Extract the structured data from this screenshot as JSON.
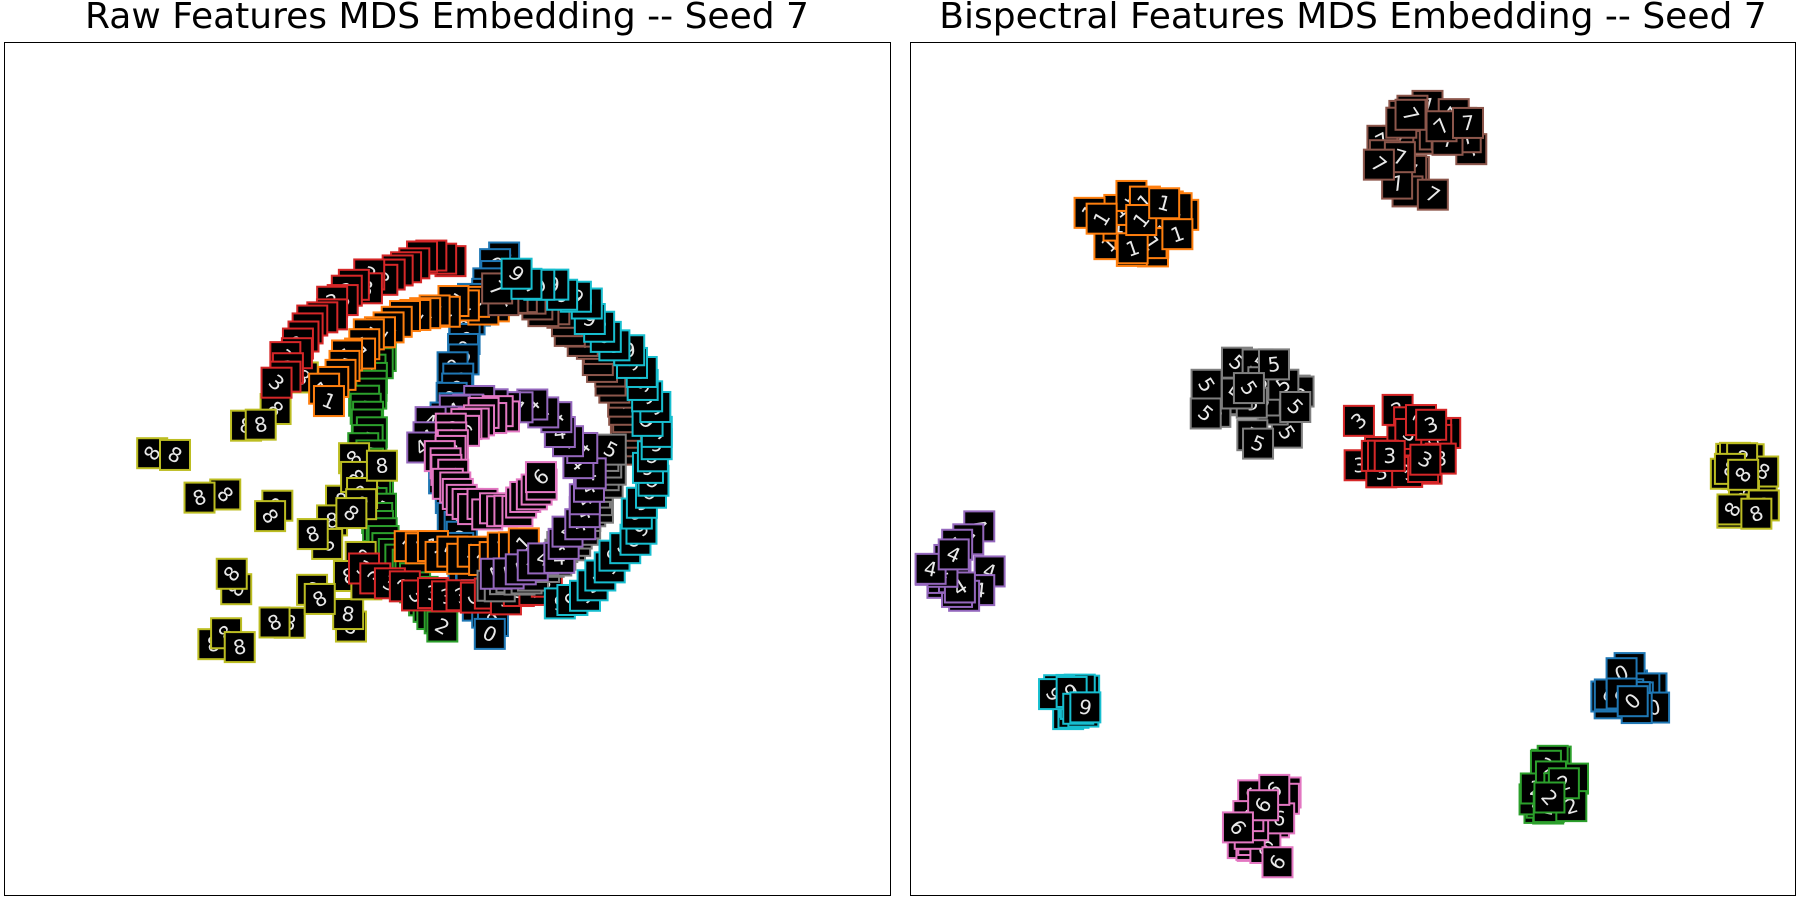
{
  "chart_data": [
    {
      "type": "scatter",
      "title": "Raw Features MDS Embedding -- Seed 7",
      "marker": "digit-image-thumbnail",
      "xlim": [
        -1.1,
        1.1
      ],
      "ylim": [
        -1.1,
        1.1
      ],
      "grid": false,
      "series": [
        {
          "class": "0",
          "color": "#1f77b4",
          "layout": "arc",
          "params": {
            "cx": 1.0,
            "cy": 0.05,
            "r": 2.0,
            "a0": 150,
            "a1": 208
          },
          "count": 40
        },
        {
          "class": "2",
          "color": "#2ca02c",
          "layout": "arc",
          "params": {
            "cx": 0.55,
            "cy": 0.1,
            "r": 1.5,
            "a0": 165,
            "a1": 222
          },
          "count": 38
        },
        {
          "class": "8",
          "color": "#bcbd22",
          "layout": "cloud",
          "params": {
            "cx": -0.45,
            "cy": -0.12,
            "rx": 0.33,
            "ry": 0.38
          },
          "count": 34
        },
        {
          "class": "3",
          "color": "#d62728",
          "layout": "arc",
          "params": {
            "cx": 0.05,
            "cy": 0.05,
            "r": 1.0,
            "a0": 95,
            "a1": 160
          },
          "count": 26
        },
        {
          "class": "3b",
          "color": "#d62728",
          "layout": "arc",
          "params": {
            "cx": 0.05,
            "cy": 0.05,
            "r": 0.78,
            "a0": 230,
            "a1": 300
          },
          "count": 14
        },
        {
          "class": "1",
          "color": "#ff7f0e",
          "layout": "arc",
          "params": {
            "cx": 0.05,
            "cy": 0.05,
            "r": 0.75,
            "a0": 80,
            "a1": 160
          },
          "count": 22
        },
        {
          "class": "1b",
          "color": "#ff7f0e",
          "layout": "arc",
          "params": {
            "cx": 0.05,
            "cy": 0.05,
            "r": 0.55,
            "a0": 240,
            "a1": 300
          },
          "count": 12
        },
        {
          "class": "7",
          "color": "#8c564b",
          "layout": "arc",
          "params": {
            "cx": 0.05,
            "cy": 0.05,
            "r": 0.82,
            "a0": 0,
            "a1": 80
          },
          "count": 28
        },
        {
          "class": "5",
          "color": "#7f7f7f",
          "layout": "arc",
          "params": {
            "cx": 0.05,
            "cy": 0.05,
            "r": 0.7,
            "a0": 280,
            "a1": 360
          },
          "count": 30
        },
        {
          "class": "9",
          "color": "#17becf",
          "layout": "arc",
          "params": {
            "cx": 0.05,
            "cy": 0.05,
            "r": 0.93,
            "a0": -60,
            "a1": 75
          },
          "count": 36
        },
        {
          "class": "4",
          "color": "#9467bd",
          "layout": "arc",
          "params": {
            "cx": 0.12,
            "cy": -0.05,
            "r": 0.45,
            "a0": -90,
            "a1": 150
          },
          "count": 30
        },
        {
          "class": "6",
          "color": "#e377c2",
          "layout": "arc",
          "params": {
            "cx": 0.12,
            "cy": 0.02,
            "r": 0.25,
            "a0": 80,
            "a1": 340
          },
          "count": 34
        }
      ]
    },
    {
      "type": "scatter",
      "title": "Bispectral Features MDS Embedding -- Seed 7",
      "marker": "digit-image-thumbnail",
      "xlim": [
        -1.1,
        1.1
      ],
      "ylim": [
        -1.1,
        1.1
      ],
      "grid": false,
      "series": [
        {
          "class": "7",
          "color": "#8c564b",
          "layout": "cloud",
          "params": {
            "cx": 0.18,
            "cy": 0.82,
            "rx": 0.13,
            "ry": 0.13
          },
          "count": 26
        },
        {
          "class": "1",
          "color": "#ff7f0e",
          "layout": "cloud",
          "params": {
            "cx": -0.55,
            "cy": 0.64,
            "rx": 0.13,
            "ry": 0.09
          },
          "count": 22
        },
        {
          "class": "5",
          "color": "#7f7f7f",
          "layout": "cloud",
          "params": {
            "cx": -0.25,
            "cy": 0.17,
            "rx": 0.13,
            "ry": 0.11
          },
          "count": 22
        },
        {
          "class": "3",
          "color": "#d62728",
          "layout": "cloud",
          "params": {
            "cx": 0.11,
            "cy": 0.07,
            "rx": 0.13,
            "ry": 0.09
          },
          "count": 22
        },
        {
          "class": "8",
          "color": "#bcbd22",
          "layout": "cloud",
          "params": {
            "cx": 0.98,
            "cy": -0.07,
            "rx": 0.06,
            "ry": 0.13
          },
          "count": 18
        },
        {
          "class": "4",
          "color": "#9467bd",
          "layout": "cloud",
          "params": {
            "cx": -0.98,
            "cy": -0.23,
            "rx": 0.09,
            "ry": 0.1
          },
          "count": 18
        },
        {
          "class": "9",
          "color": "#17becf",
          "layout": "cloud",
          "params": {
            "cx": -0.7,
            "cy": -0.6,
            "rx": 0.05,
            "ry": 0.04
          },
          "count": 16
        },
        {
          "class": "0",
          "color": "#1f77b4",
          "layout": "cloud",
          "params": {
            "cx": 0.7,
            "cy": -0.57,
            "rx": 0.08,
            "ry": 0.06
          },
          "count": 18
        },
        {
          "class": "6",
          "color": "#e377c2",
          "layout": "cloud",
          "params": {
            "cx": -0.21,
            "cy": -0.92,
            "rx": 0.08,
            "ry": 0.1
          },
          "count": 20
        },
        {
          "class": "2",
          "color": "#2ca02c",
          "layout": "cloud",
          "params": {
            "cx": 0.5,
            "cy": -0.82,
            "rx": 0.07,
            "ry": 0.07
          },
          "count": 20
        }
      ]
    }
  ]
}
